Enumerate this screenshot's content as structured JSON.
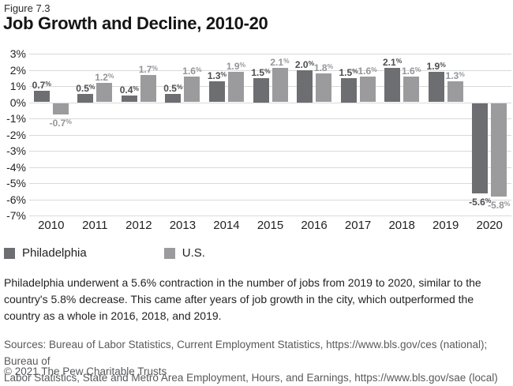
{
  "header": {
    "figure_label": "Figure 7.3",
    "title": "Job Growth and Decline, 2010-20"
  },
  "chart_data": {
    "type": "bar",
    "categories": [
      "2010",
      "2011",
      "2012",
      "2013",
      "2014",
      "2015",
      "2016",
      "2017",
      "2018",
      "2019",
      "2020"
    ],
    "series": [
      {
        "name": "Philadelphia",
        "color": "#6d6e71",
        "label_color": "#4d4d4f",
        "values": [
          0.7,
          0.5,
          0.4,
          0.5,
          1.3,
          1.5,
          2.0,
          1.5,
          2.1,
          1.9,
          -5.6
        ]
      },
      {
        "name": "U.S.",
        "color": "#9b9b9d",
        "label_color": "#939598",
        "values": [
          -0.7,
          1.2,
          1.7,
          1.6,
          1.9,
          2.1,
          1.8,
          1.6,
          1.6,
          1.3,
          -5.8
        ]
      }
    ],
    "title": "Job Growth and Decline, 2010-20",
    "xlabel": "",
    "ylabel": "",
    "ylim": [
      -7,
      3
    ],
    "yticks": [
      3,
      2,
      1,
      0,
      -1,
      -2,
      -3,
      -4,
      -5,
      -6,
      -7
    ],
    "ytick_suffix": "%",
    "value_label_suffix": "%",
    "grid": true,
    "gridline_color": "#d9d9d9",
    "legend_position": "bottom-left",
    "value_labels": true
  },
  "legend": {
    "items": [
      {
        "label": "Philadelphia",
        "color": "#6d6e71"
      },
      {
        "label": "U.S.",
        "color": "#9b9b9d"
      }
    ]
  },
  "caption": {
    "text": "Philadelphia underwent a 5.6% contraction in the number of jobs from 2019 to 2020, similar to the\ncountry's 5.8% decrease. This came after years of job growth in the city, which outperformed the\ncountry as a whole in 2016, 2018, and 2019."
  },
  "sources": {
    "text": "Sources: Bureau of Labor Statistics, Current Employment Statistics, https://www.bls.gov/ces (national); Bureau of\nLabor Statistics, State and Metro Area Employment, Hours, and Earnings, https://www.bls.gov/sae (local)"
  },
  "copyright": {
    "text": "© 2021 The Pew Charitable Trusts"
  }
}
